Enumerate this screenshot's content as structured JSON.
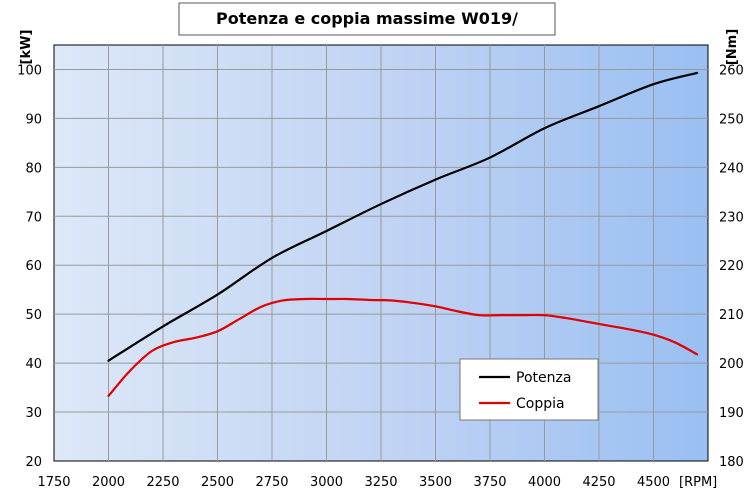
{
  "chart_data": {
    "type": "line",
    "title": "Potenza e coppia massime W019/",
    "xlabel": "[RPM]",
    "ylabel_left": "[kW]",
    "ylabel_right": "[Nm]",
    "xlim": [
      1750,
      4750
    ],
    "ylim_left": [
      20,
      105
    ],
    "ylim_right": [
      180,
      265
    ],
    "x_ticks": [
      1750,
      2000,
      2250,
      2500,
      2750,
      3000,
      3250,
      3500,
      3750,
      4000,
      4250,
      4500
    ],
    "y_left_ticks": [
      20,
      30,
      40,
      50,
      60,
      70,
      80,
      90,
      100
    ],
    "y_right_ticks": [
      180,
      190,
      200,
      210,
      220,
      230,
      240,
      250,
      260
    ],
    "grid": true,
    "legend_position": "bottom-right",
    "series": [
      {
        "name": "Potenza",
        "axis": "left",
        "color": "#000000",
        "x": [
          2000,
          2250,
          2500,
          2750,
          3000,
          3250,
          3500,
          3750,
          4000,
          4250,
          4500,
          4700
        ],
        "values": [
          40.5,
          47.5,
          54,
          61.5,
          67,
          72.5,
          77.5,
          82,
          88,
          92.5,
          97,
          99.3
        ]
      },
      {
        "name": "Coppia",
        "axis": "right",
        "color": "#e00000",
        "x": [
          2000,
          2100,
          2200,
          2300,
          2400,
          2500,
          2600,
          2700,
          2800,
          2900,
          3000,
          3100,
          3200,
          3300,
          3400,
          3500,
          3600,
          3700,
          3800,
          3900,
          4000,
          4100,
          4200,
          4300,
          4400,
          4500,
          4600,
          4700
        ],
        "values": [
          193.3,
          198.5,
          202.5,
          204.3,
          205.2,
          206.5,
          209,
          211.5,
          212.8,
          213.1,
          213.1,
          213.1,
          212.9,
          212.8,
          212.3,
          211.6,
          210.6,
          209.8,
          209.8,
          209.8,
          209.8,
          209.2,
          208.4,
          207.6,
          206.8,
          205.8,
          204.2,
          201.8
        ]
      }
    ]
  }
}
